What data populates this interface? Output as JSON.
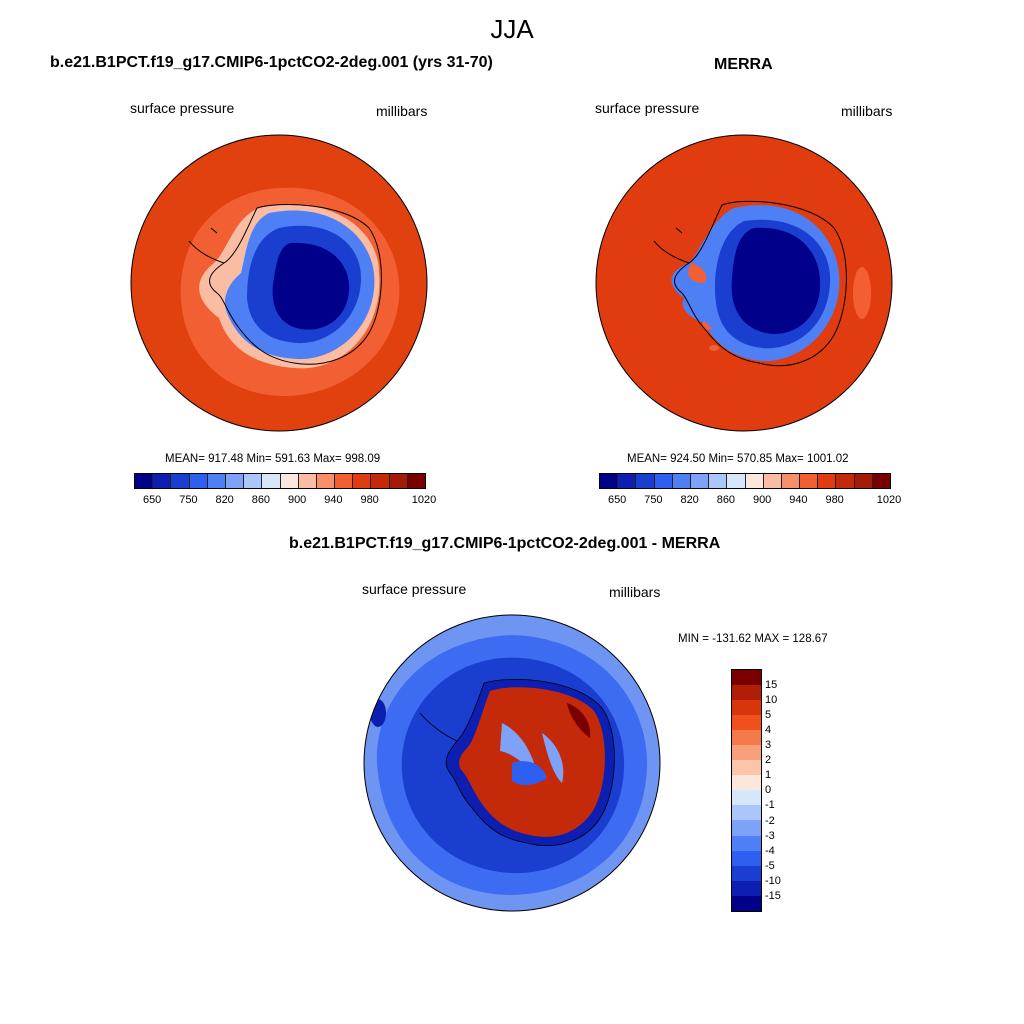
{
  "main_title": "JJA",
  "panel_left": {
    "title": "b.e21.B1PCT.f19_g17.CMIP6-1pctCO2-2deg.001 (yrs 31-70)",
    "left_label": "surface pressure",
    "right_label": "millibars",
    "stats": "MEAN= 917.48  Min= 591.63  Max= 998.09"
  },
  "panel_right": {
    "title": "MERRA",
    "left_label": "surface pressure",
    "right_label": "millibars",
    "stats": "MEAN= 924.50  Min= 570.85  Max= 1001.02"
  },
  "panel_diff": {
    "title": "b.e21.B1PCT.f19_g17.CMIP6-1pctCO2-2deg.001 - MERRA",
    "left_label": "surface pressure",
    "right_label": "millibars",
    "minmax": "MIN = -131.62 MAX = 128.67"
  },
  "colorbar_abs": {
    "labels": [
      "650",
      "750",
      "820",
      "860",
      "900",
      "940",
      "980",
      "1020"
    ],
    "colors": [
      "#00008b",
      "#0d1fb0",
      "#1a3fd0",
      "#2e5ff0",
      "#4f7ff5",
      "#7da2f7",
      "#abc6f9",
      "#d6e6fb",
      "#fde6dc",
      "#fbbca4",
      "#f78f6a",
      "#f25f33",
      "#e03c10",
      "#c42a0a",
      "#a31a06",
      "#7a0000"
    ]
  },
  "colorbar_diff": {
    "labels": [
      "15",
      "10",
      "5",
      "4",
      "3",
      "2",
      "1",
      "0",
      "-1",
      "-2",
      "-3",
      "-4",
      "-5",
      "-10",
      "-15"
    ],
    "colors": [
      "#7a0000",
      "#b01e06",
      "#d9350c",
      "#f0501e",
      "#f47a4c",
      "#f7a07a",
      "#fbc5aa",
      "#fde6dc",
      "#d6e6fb",
      "#abc6f9",
      "#7da2f7",
      "#4f7ff5",
      "#2e5ff0",
      "#1a3fd0",
      "#0d1fb0",
      "#00008b"
    ]
  },
  "colors": {
    "ocean_left": "#e0410f",
    "ocean_left_inner": "#f25f33",
    "ocean_right": "#e03c10",
    "ice_core": "#00008b",
    "ice_mid": "#2e5ff0",
    "diff_ocean": "#1a3fd0",
    "diff_outer": "#6f95f2"
  }
}
